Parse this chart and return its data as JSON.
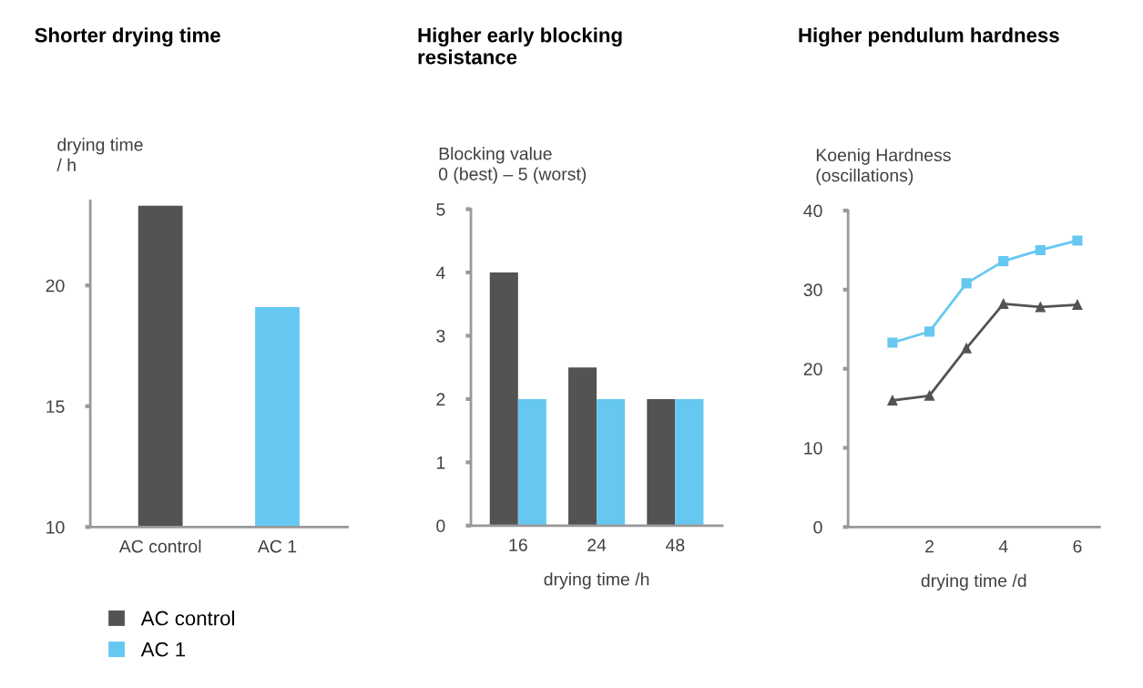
{
  "chart_data": [
    {
      "type": "bar",
      "title": "Shorter drying time",
      "ylabel": "drying time\n/ h",
      "categories": [
        "AC control",
        "AC 1"
      ],
      "stacked": true,
      "series": [
        {
          "name": "AC control",
          "color": "#545354",
          "values": [
            23.3,
            null
          ]
        },
        {
          "name": "AC 1",
          "color": "#66c8f0",
          "values": [
            null,
            19.1
          ]
        }
      ],
      "ylim": [
        10,
        23.5
      ],
      "yticks": [
        10,
        15,
        20
      ],
      "grid": false,
      "legend": "bottom left"
    },
    {
      "type": "bar",
      "title": "Higher early blocking\nresistance",
      "ylabel": "Blocking value\n0 (best) – 5 (worst)",
      "xlabel": "drying time /h",
      "categories": [
        "16",
        "24",
        "48"
      ],
      "series": [
        {
          "color": "#545354",
          "values": [
            4.0,
            2.5,
            2.0
          ]
        },
        {
          "color": "#66c8f0",
          "values": [
            2.0,
            2.0,
            2.0
          ]
        }
      ],
      "ylim": [
        0,
        5
      ],
      "yticks": [
        0,
        1,
        2,
        3,
        4,
        5
      ],
      "grid": false
    },
    {
      "type": "line",
      "title": "Higher pendulum hardness",
      "ylabel": "Koenig Hardness\n(oscillations)",
      "xlabel": "drying time /d",
      "x": [
        1,
        2,
        3,
        4,
        5,
        6
      ],
      "series": [
        {
          "color": "#66c8f0",
          "marker": "square",
          "values": [
            23.3,
            24.7,
            30.8,
            33.6,
            35.0,
            36.2
          ]
        },
        {
          "color": "#545354",
          "marker": "triangle",
          "values": [
            16.0,
            16.6,
            22.6,
            28.2,
            27.8,
            28.1
          ]
        }
      ],
      "xlim": [
        -0.2,
        6.6
      ],
      "xticks": [
        2,
        4,
        6
      ],
      "ylim": [
        0,
        40
      ],
      "yticks": [
        0,
        10,
        20,
        30,
        40
      ],
      "grid": false,
      "line_style": "solid"
    }
  ]
}
